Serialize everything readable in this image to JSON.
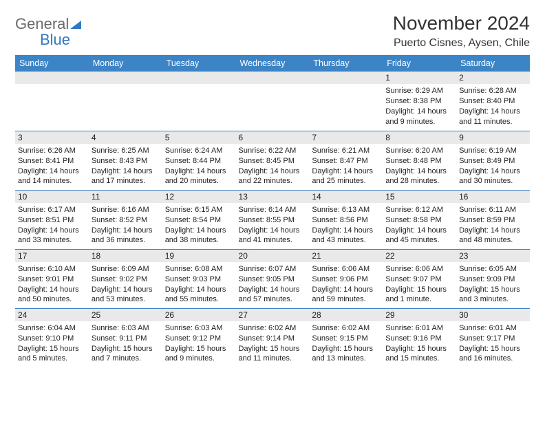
{
  "logo": {
    "word1": "General",
    "word2": "Blue"
  },
  "header": {
    "month_title": "November 2024",
    "location": "Puerto Cisnes, Aysen, Chile"
  },
  "colors": {
    "header_bg": "#3c84c6",
    "row_divider": "#3c84c6",
    "daynum_bg": "#e9e9e9",
    "text": "#222222",
    "logo_gray": "#6a6a6a",
    "logo_blue": "#2f78c4"
  },
  "day_labels": [
    "Sunday",
    "Monday",
    "Tuesday",
    "Wednesday",
    "Thursday",
    "Friday",
    "Saturday"
  ],
  "weeks": [
    [
      null,
      null,
      null,
      null,
      null,
      {
        "n": "1",
        "sunrise": "Sunrise: 6:29 AM",
        "sunset": "Sunset: 8:38 PM",
        "daylight": "Daylight: 14 hours and 9 minutes."
      },
      {
        "n": "2",
        "sunrise": "Sunrise: 6:28 AM",
        "sunset": "Sunset: 8:40 PM",
        "daylight": "Daylight: 14 hours and 11 minutes."
      }
    ],
    [
      {
        "n": "3",
        "sunrise": "Sunrise: 6:26 AM",
        "sunset": "Sunset: 8:41 PM",
        "daylight": "Daylight: 14 hours and 14 minutes."
      },
      {
        "n": "4",
        "sunrise": "Sunrise: 6:25 AM",
        "sunset": "Sunset: 8:43 PM",
        "daylight": "Daylight: 14 hours and 17 minutes."
      },
      {
        "n": "5",
        "sunrise": "Sunrise: 6:24 AM",
        "sunset": "Sunset: 8:44 PM",
        "daylight": "Daylight: 14 hours and 20 minutes."
      },
      {
        "n": "6",
        "sunrise": "Sunrise: 6:22 AM",
        "sunset": "Sunset: 8:45 PM",
        "daylight": "Daylight: 14 hours and 22 minutes."
      },
      {
        "n": "7",
        "sunrise": "Sunrise: 6:21 AM",
        "sunset": "Sunset: 8:47 PM",
        "daylight": "Daylight: 14 hours and 25 minutes."
      },
      {
        "n": "8",
        "sunrise": "Sunrise: 6:20 AM",
        "sunset": "Sunset: 8:48 PM",
        "daylight": "Daylight: 14 hours and 28 minutes."
      },
      {
        "n": "9",
        "sunrise": "Sunrise: 6:19 AM",
        "sunset": "Sunset: 8:49 PM",
        "daylight": "Daylight: 14 hours and 30 minutes."
      }
    ],
    [
      {
        "n": "10",
        "sunrise": "Sunrise: 6:17 AM",
        "sunset": "Sunset: 8:51 PM",
        "daylight": "Daylight: 14 hours and 33 minutes."
      },
      {
        "n": "11",
        "sunrise": "Sunrise: 6:16 AM",
        "sunset": "Sunset: 8:52 PM",
        "daylight": "Daylight: 14 hours and 36 minutes."
      },
      {
        "n": "12",
        "sunrise": "Sunrise: 6:15 AM",
        "sunset": "Sunset: 8:54 PM",
        "daylight": "Daylight: 14 hours and 38 minutes."
      },
      {
        "n": "13",
        "sunrise": "Sunrise: 6:14 AM",
        "sunset": "Sunset: 8:55 PM",
        "daylight": "Daylight: 14 hours and 41 minutes."
      },
      {
        "n": "14",
        "sunrise": "Sunrise: 6:13 AM",
        "sunset": "Sunset: 8:56 PM",
        "daylight": "Daylight: 14 hours and 43 minutes."
      },
      {
        "n": "15",
        "sunrise": "Sunrise: 6:12 AM",
        "sunset": "Sunset: 8:58 PM",
        "daylight": "Daylight: 14 hours and 45 minutes."
      },
      {
        "n": "16",
        "sunrise": "Sunrise: 6:11 AM",
        "sunset": "Sunset: 8:59 PM",
        "daylight": "Daylight: 14 hours and 48 minutes."
      }
    ],
    [
      {
        "n": "17",
        "sunrise": "Sunrise: 6:10 AM",
        "sunset": "Sunset: 9:01 PM",
        "daylight": "Daylight: 14 hours and 50 minutes."
      },
      {
        "n": "18",
        "sunrise": "Sunrise: 6:09 AM",
        "sunset": "Sunset: 9:02 PM",
        "daylight": "Daylight: 14 hours and 53 minutes."
      },
      {
        "n": "19",
        "sunrise": "Sunrise: 6:08 AM",
        "sunset": "Sunset: 9:03 PM",
        "daylight": "Daylight: 14 hours and 55 minutes."
      },
      {
        "n": "20",
        "sunrise": "Sunrise: 6:07 AM",
        "sunset": "Sunset: 9:05 PM",
        "daylight": "Daylight: 14 hours and 57 minutes."
      },
      {
        "n": "21",
        "sunrise": "Sunrise: 6:06 AM",
        "sunset": "Sunset: 9:06 PM",
        "daylight": "Daylight: 14 hours and 59 minutes."
      },
      {
        "n": "22",
        "sunrise": "Sunrise: 6:06 AM",
        "sunset": "Sunset: 9:07 PM",
        "daylight": "Daylight: 15 hours and 1 minute."
      },
      {
        "n": "23",
        "sunrise": "Sunrise: 6:05 AM",
        "sunset": "Sunset: 9:09 PM",
        "daylight": "Daylight: 15 hours and 3 minutes."
      }
    ],
    [
      {
        "n": "24",
        "sunrise": "Sunrise: 6:04 AM",
        "sunset": "Sunset: 9:10 PM",
        "daylight": "Daylight: 15 hours and 5 minutes."
      },
      {
        "n": "25",
        "sunrise": "Sunrise: 6:03 AM",
        "sunset": "Sunset: 9:11 PM",
        "daylight": "Daylight: 15 hours and 7 minutes."
      },
      {
        "n": "26",
        "sunrise": "Sunrise: 6:03 AM",
        "sunset": "Sunset: 9:12 PM",
        "daylight": "Daylight: 15 hours and 9 minutes."
      },
      {
        "n": "27",
        "sunrise": "Sunrise: 6:02 AM",
        "sunset": "Sunset: 9:14 PM",
        "daylight": "Daylight: 15 hours and 11 minutes."
      },
      {
        "n": "28",
        "sunrise": "Sunrise: 6:02 AM",
        "sunset": "Sunset: 9:15 PM",
        "daylight": "Daylight: 15 hours and 13 minutes."
      },
      {
        "n": "29",
        "sunrise": "Sunrise: 6:01 AM",
        "sunset": "Sunset: 9:16 PM",
        "daylight": "Daylight: 15 hours and 15 minutes."
      },
      {
        "n": "30",
        "sunrise": "Sunrise: 6:01 AM",
        "sunset": "Sunset: 9:17 PM",
        "daylight": "Daylight: 15 hours and 16 minutes."
      }
    ]
  ]
}
